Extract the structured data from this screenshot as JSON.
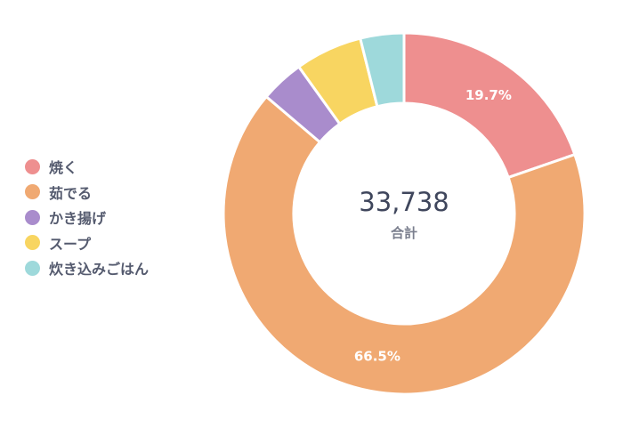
{
  "chart_data": {
    "type": "pie",
    "categories": [
      "焼く",
      "茹でる",
      "かき揚げ",
      "スープ",
      "炊き込みごはん"
    ],
    "values": [
      19.7,
      66.5,
      3.9,
      6.0,
      3.9
    ],
    "data_labels": [
      "19.7%",
      "66.5%",
      "",
      "",
      ""
    ],
    "colors": [
      "#ee8f8f",
      "#f0a972",
      "#a98ccc",
      "#f8d561",
      "#9ed9db"
    ],
    "center_total": "33,738",
    "center_label": "合計",
    "legend_position": "left"
  }
}
